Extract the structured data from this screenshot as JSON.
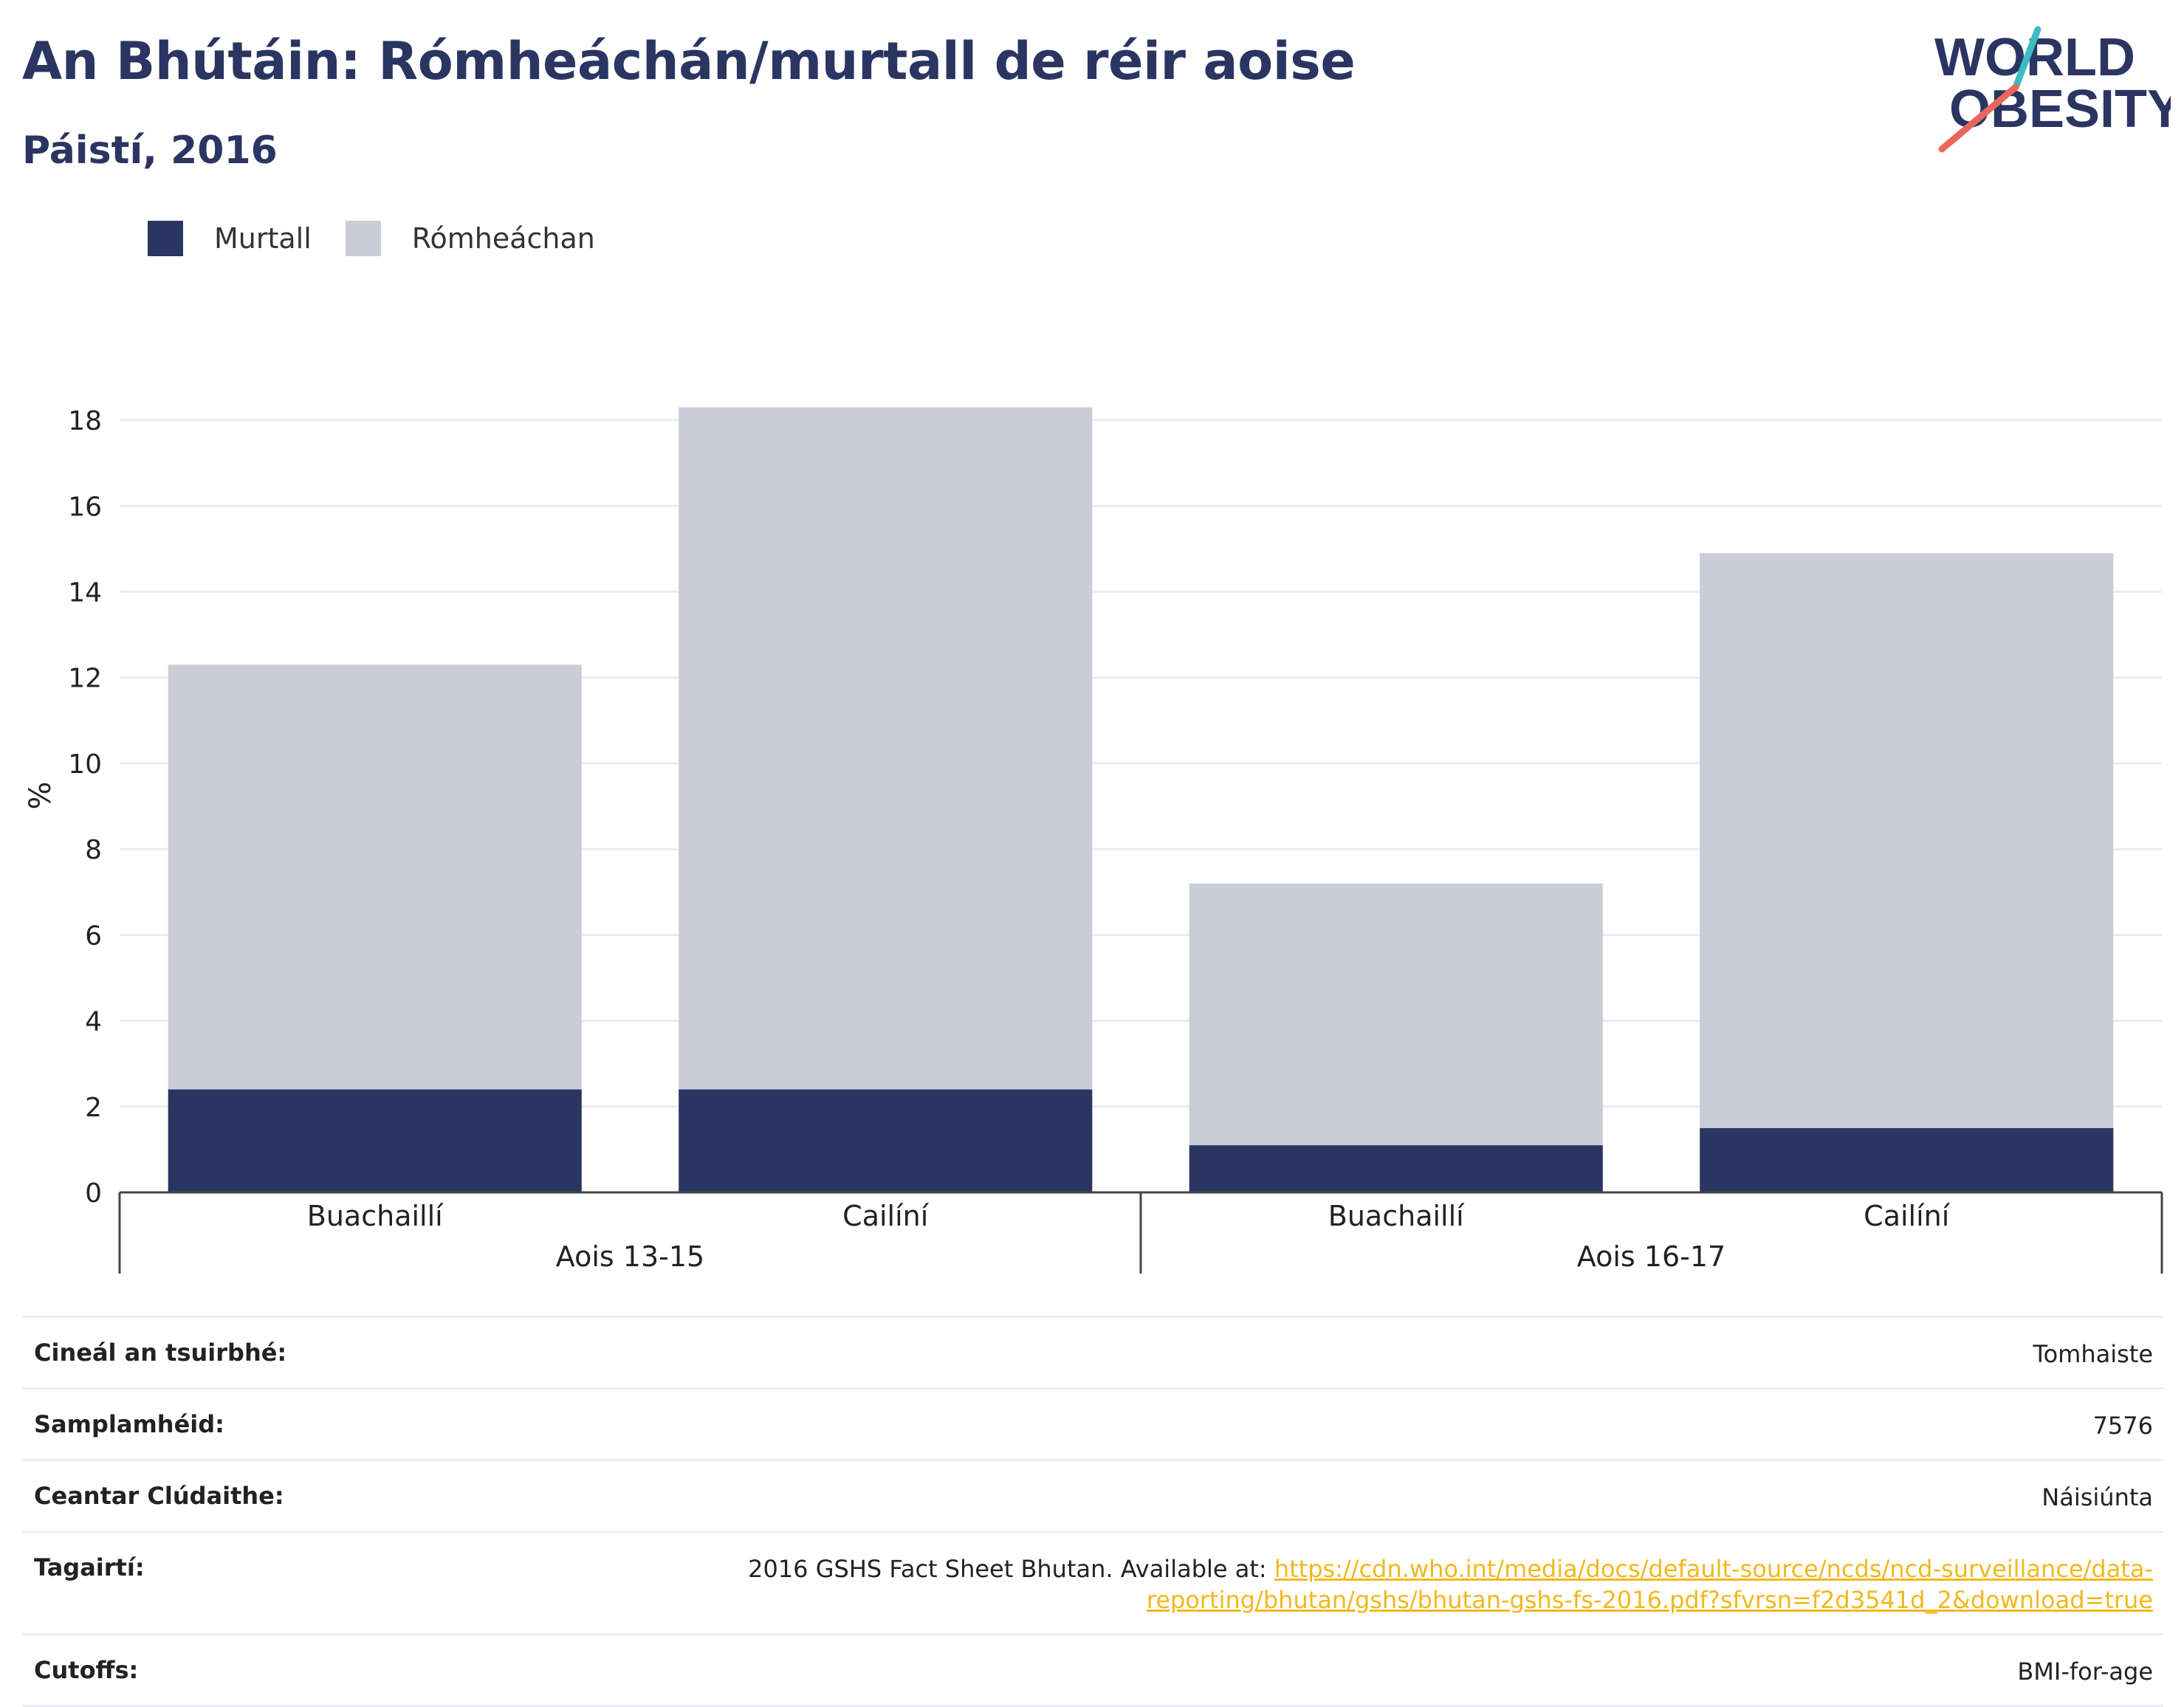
{
  "header": {
    "title": "An Bhútáin: Rómheáchán/murtall de réir aoise",
    "subtitle": "Páistí, 2016"
  },
  "logo": {
    "line1": "WORLD",
    "line2": "OBESITY"
  },
  "colors": {
    "obese": "#2a3562",
    "overweight": "#cacdd8",
    "accent_text": "#2a3562",
    "link": "#f2b81c",
    "logo_teal": "#3cbcc3",
    "logo_coral": "#e8675d"
  },
  "chart_data": {
    "type": "bar",
    "stacked": true,
    "ylabel": "%",
    "ylim": [
      0,
      18.5
    ],
    "yticks": [
      0,
      2,
      4,
      6,
      8,
      10,
      12,
      14,
      16,
      18
    ],
    "grid": true,
    "legend_position": "top-left",
    "groups": [
      {
        "label": "Aois 13-15",
        "categories": [
          "Buachaillí",
          "Cailíní"
        ]
      },
      {
        "label": "Aois 16-17",
        "categories": [
          "Buachaillí",
          "Cailíní"
        ]
      }
    ],
    "series": [
      {
        "name": "Murtall",
        "values": [
          2.4,
          2.4,
          1.1,
          1.5
        ]
      },
      {
        "name": "Rómheáchan",
        "values": [
          9.9,
          15.9,
          6.1,
          13.4
        ]
      }
    ]
  },
  "info": {
    "rows": [
      {
        "label": "Cineál an tsuirbhé:",
        "value": "Tomhaiste"
      },
      {
        "label": "Samplamhéid:",
        "value": "7576"
      },
      {
        "label": "Ceantar Clúdaithe:",
        "value": "Náisiúnta"
      }
    ],
    "reference": {
      "label": "Tagairtí:",
      "text": "2016 GSHS Fact Sheet Bhutan. Available at: ",
      "link_line1": "https://cdn.who.int/media/docs/default-source/ncds/ncd-surveillance/data-",
      "link_line2": "reporting/bhutan/gshs/bhutan-gshs-fs-2016.pdf?sfvrsn=f2d3541d_2&download=true"
    },
    "cutoffs": {
      "label": "Cutoffs:",
      "value": "BMI-for-age"
    }
  }
}
